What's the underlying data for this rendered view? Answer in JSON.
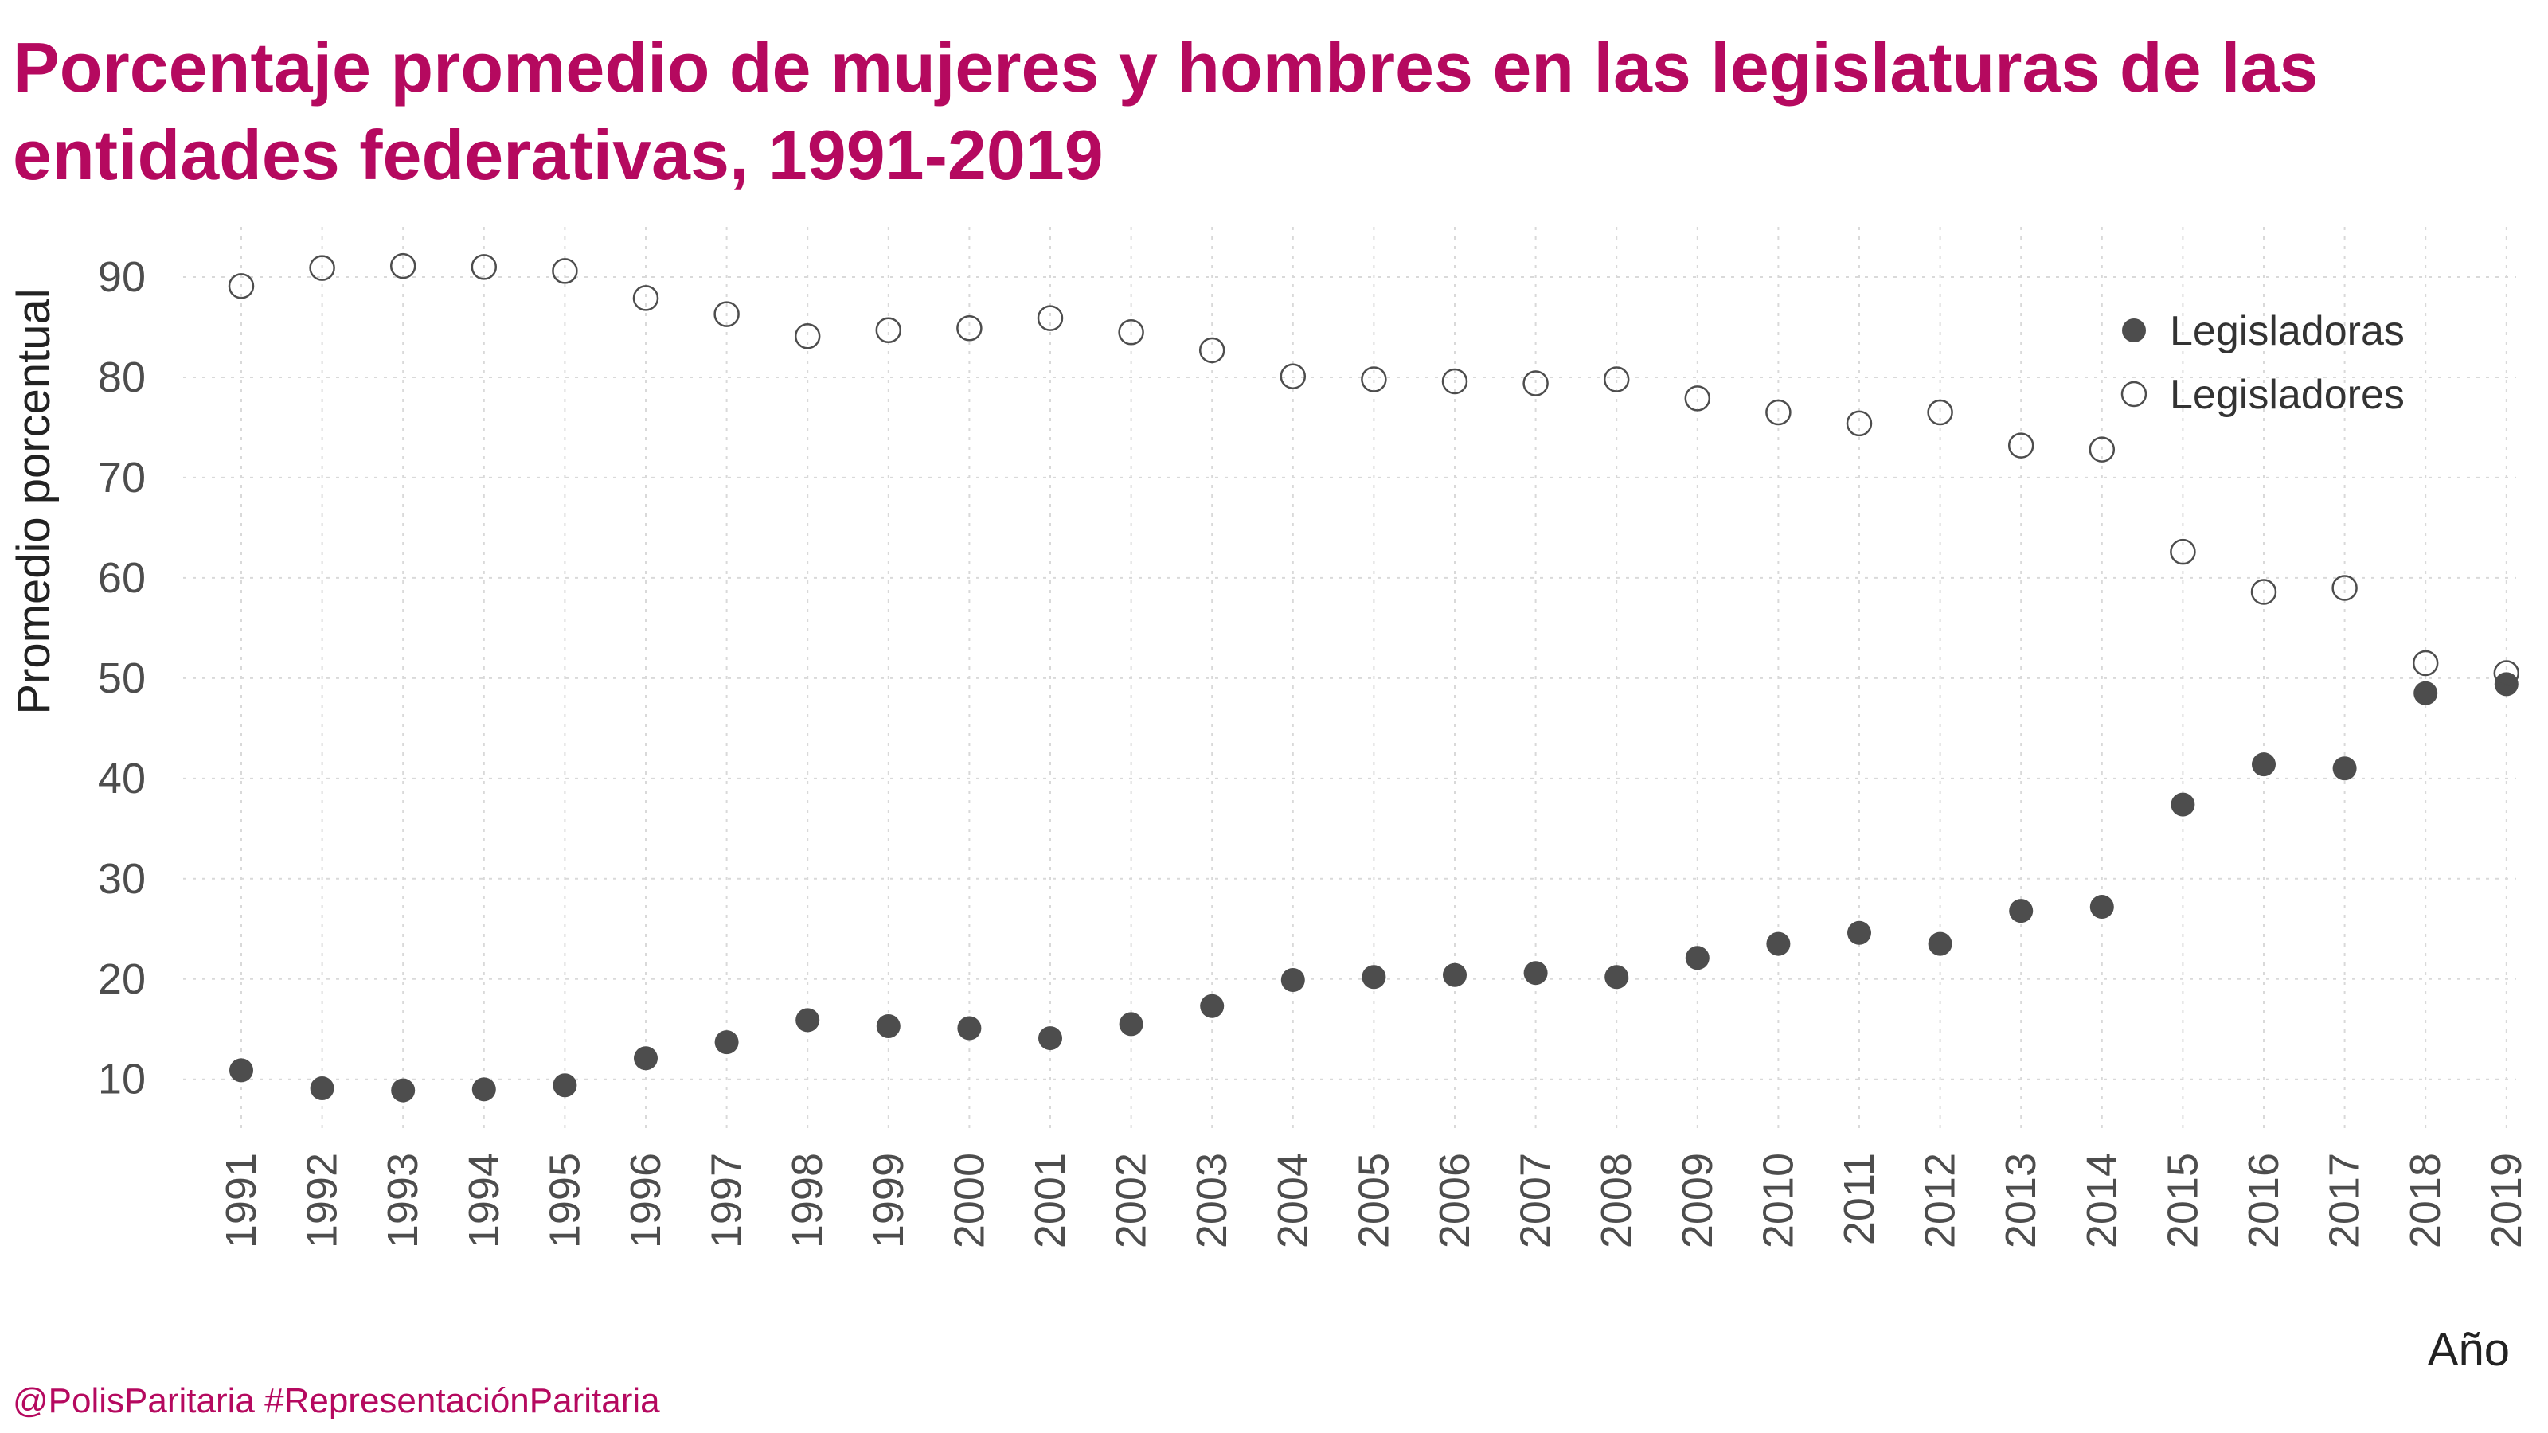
{
  "title": "Porcentaje promedio de mujeres y hombres en las legislaturas de las entidades federativas, 1991-2019",
  "footer": "@PolisParitaria #RepresentaciónParitaria",
  "colors": {
    "title": "#b5095f",
    "filled": "#4d4d4d",
    "open_stroke": "#4d4d4d",
    "grid": "#d9d9d9",
    "axis_text": "#4d4d4d"
  },
  "chart_data": {
    "type": "scatter",
    "xlabel": "Año",
    "ylabel": "Promedio porcentual",
    "categories": [
      "1991",
      "1992",
      "1993",
      "1994",
      "1995",
      "1996",
      "1997",
      "1998",
      "1999",
      "2000",
      "2001",
      "2002",
      "2003",
      "2004",
      "2005",
      "2006",
      "2007",
      "2008",
      "2009",
      "2010",
      "2011",
      "2012",
      "2013",
      "2014",
      "2015",
      "2016",
      "2017",
      "2018",
      "2019"
    ],
    "yticks": [
      10,
      20,
      30,
      40,
      50,
      60,
      70,
      80,
      90
    ],
    "ylim": [
      4.5,
      95
    ],
    "grid": true,
    "legend_position": "top-right",
    "series": [
      {
        "name": "Legisladoras",
        "marker": "filled",
        "values": [
          10.9,
          9.1,
          8.9,
          9.0,
          9.4,
          12.1,
          13.7,
          15.9,
          15.3,
          15.1,
          14.1,
          15.5,
          17.3,
          19.9,
          20.2,
          20.4,
          20.6,
          20.2,
          22.1,
          23.5,
          24.6,
          23.5,
          26.8,
          27.2,
          37.4,
          41.4,
          41.0,
          48.5,
          49.4
        ]
      },
      {
        "name": "Legisladores",
        "marker": "open",
        "values": [
          89.1,
          90.9,
          91.1,
          91.0,
          90.6,
          87.9,
          86.3,
          84.1,
          84.7,
          84.9,
          85.9,
          84.5,
          82.7,
          80.1,
          79.8,
          79.6,
          79.4,
          79.8,
          77.9,
          76.5,
          75.4,
          76.5,
          73.2,
          72.8,
          62.6,
          58.6,
          59.0,
          51.5,
          50.5
        ]
      }
    ]
  }
}
